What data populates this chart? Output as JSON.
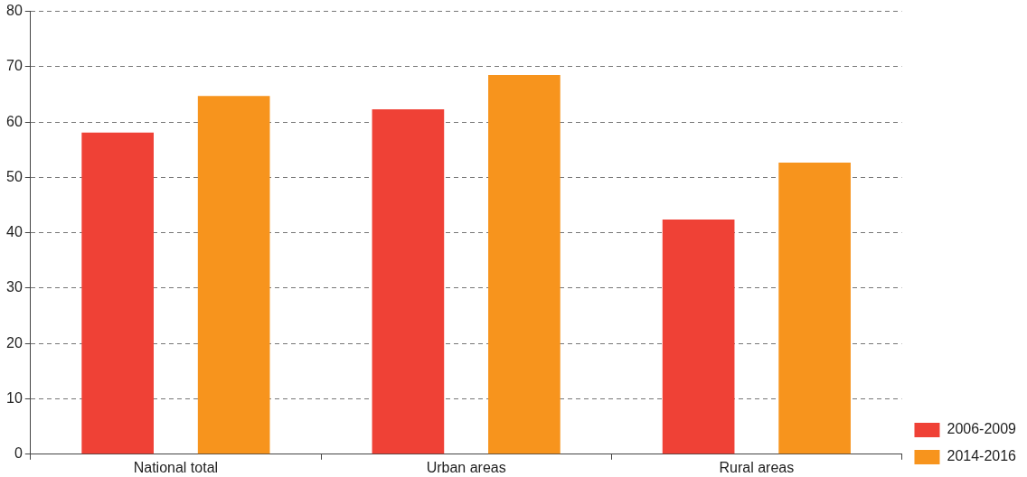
{
  "chart_data": {
    "type": "bar",
    "categories": [
      "National total",
      "Urban areas",
      "Rural areas"
    ],
    "series": [
      {
        "name": "2006-2009",
        "color": "#ef4136",
        "values": [
          58.1,
          62.3,
          42.4
        ]
      },
      {
        "name": "2014-2016",
        "color": "#f7941d",
        "values": [
          64.7,
          68.5,
          52.7
        ]
      }
    ],
    "ylim": [
      0,
      80
    ],
    "yticks": [
      0,
      10,
      20,
      30,
      40,
      50,
      60,
      70,
      80
    ],
    "grid": "y",
    "legend": "bottom right"
  }
}
